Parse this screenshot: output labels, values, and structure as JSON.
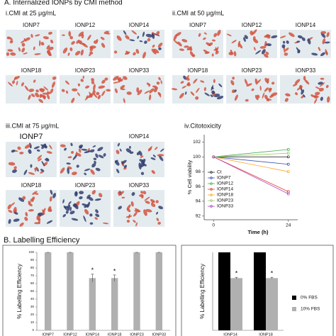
{
  "header": {
    "title": "A. Internalized IONPs by CMI method"
  },
  "panels": [
    {
      "title": "i.CMI at 25 μg/mL",
      "labels": [
        "IONP7",
        "IONP12",
        "IONP14",
        "IONP18",
        "IONP23",
        "IONP33"
      ]
    },
    {
      "title": "ii.CMI at 50 μg/mL",
      "labels": [
        "IONP7",
        "IONP12",
        "IONP14",
        "IONP18",
        "IONP23",
        "IONP33"
      ]
    },
    {
      "title": "iii.CMI at 75 μg/mL",
      "labels": [
        "IONP7",
        "IONP14",
        "IONP18",
        "IONP23",
        "IONP33"
      ]
    }
  ],
  "section_b": {
    "title": "B. Labelling Efficiency"
  },
  "chart_data": [
    {
      "type": "line",
      "title": "iv.Citotoxicity",
      "x_label": "Time (h)",
      "y_label": "% Cell viability",
      "x": [
        0,
        24
      ],
      "xlim": [
        -3,
        27
      ],
      "xticks": [
        0,
        24
      ],
      "ylim": [
        91.5,
        103
      ],
      "yticks": [
        92,
        94,
        96,
        98,
        100,
        102
      ],
      "series": [
        {
          "name": "Ct",
          "color": "#333333",
          "values": [
            100,
            100
          ]
        },
        {
          "name": "IONP7",
          "color": "#3f51b5",
          "values": [
            100,
            99
          ]
        },
        {
          "name": "IONP12",
          "color": "#4caf50",
          "values": [
            100,
            101
          ]
        },
        {
          "name": "IONP14",
          "color": "#e53935",
          "values": [
            100,
            95.3
          ]
        },
        {
          "name": "IONP18",
          "color": "#ffa726",
          "values": [
            100,
            98
          ]
        },
        {
          "name": "IONP23",
          "color": "#9ccc65",
          "values": [
            100,
            100.5
          ]
        },
        {
          "name": "IONP33",
          "color": "#ab47bc",
          "values": [
            100,
            95
          ]
        }
      ]
    },
    {
      "type": "bar",
      "y_label": "% Labelling Efficiency",
      "categories": [
        "IONP7",
        "IONP12",
        "IONP14",
        "IONP18",
        "IONP23",
        "IONP33"
      ],
      "values": [
        100,
        100,
        67,
        67,
        100,
        100
      ],
      "errors": [
        0,
        0,
        5,
        4,
        0,
        0
      ],
      "markers": [
        null,
        null,
        "*",
        "*",
        null,
        null
      ],
      "color": "#b0b0b0",
      "ylim": [
        0,
        100
      ],
      "yticks": [
        0,
        10,
        20,
        30,
        40,
        50,
        60,
        70,
        80,
        90,
        100
      ]
    },
    {
      "type": "bar",
      "y_label": "% Labelling Efficiency",
      "categories": [
        "IONP14",
        "IONP18"
      ],
      "ylim": [
        0,
        100
      ],
      "series": [
        {
          "name": "0% FBS",
          "color": "#000000",
          "values": [
            100,
            100
          ]
        },
        {
          "name": "10% FBS",
          "color": "#b0b0b0",
          "values": [
            67,
            67
          ],
          "errors": [
            1,
            1
          ],
          "markers": [
            "*",
            "*"
          ]
        }
      ]
    }
  ]
}
